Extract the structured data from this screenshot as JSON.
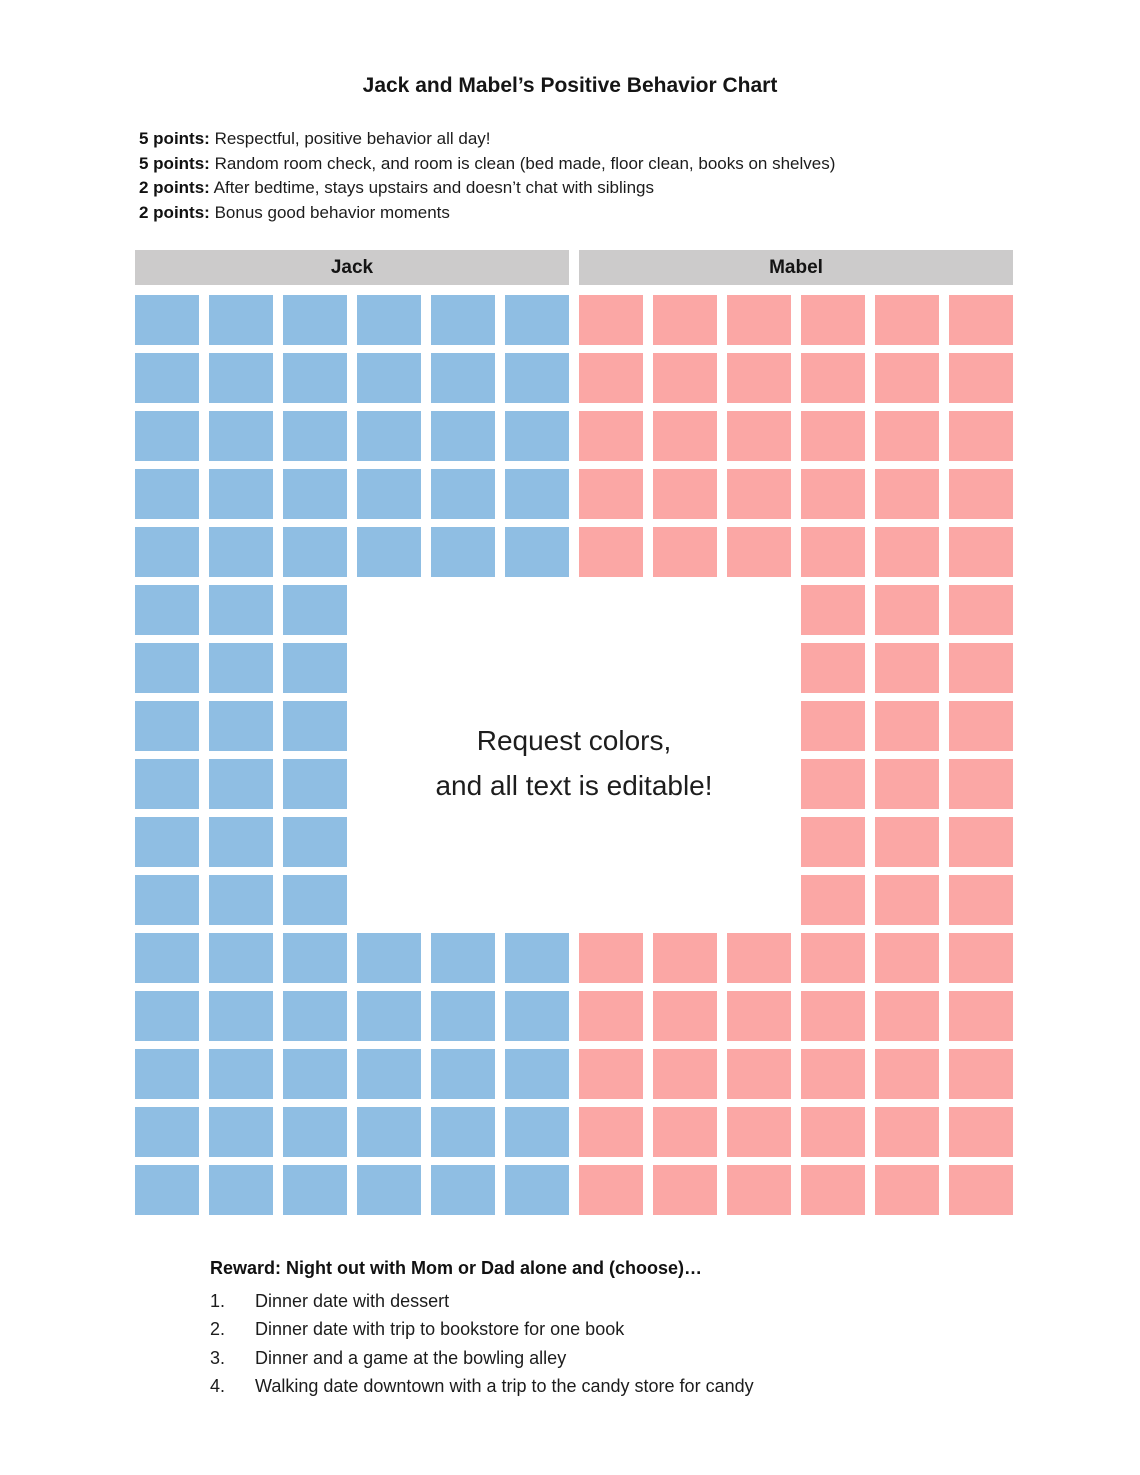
{
  "title": "Jack and Mabel’s Positive Behavior Chart",
  "points_rules": [
    {
      "points": "5 points:",
      "description": "Respectful, positive behavior all day!"
    },
    {
      "points": "5 points:",
      "description": "Random room check, and room is clean (bed made, floor clean, books on shelves)"
    },
    {
      "points": "2 points:",
      "description": "After bedtime, stays upstairs and doesn’t chat with siblings"
    },
    {
      "points": "2 points:",
      "description": "Bonus good behavior moments"
    }
  ],
  "chart": {
    "headers": [
      "Jack",
      "Mabel"
    ],
    "columns": 12,
    "legend": {
      "J": "jack-point-square",
      "M": "mabel-point-square",
      ".": "empty-cell"
    },
    "rows": [
      "JJJJJJMMMMMM",
      "JJJJJJMMMMMM",
      "JJJJJJMMMMMM",
      "JJJJJJMMMMMM",
      "JJJJJJMMMMMM",
      "JJJ......MMM",
      "JJJ......MMM",
      "JJJ......MMM",
      "JJJ......MMM",
      "JJJ......MMM",
      "JJJ......MMM",
      "JJJJJJMMMMMM",
      "JJJJJJMMMMMM",
      "JJJJJJMMMMMM",
      "JJJJJJMMMMMM",
      "JJJJJJMMMMMM"
    ],
    "center_note_lines": [
      "Request colors,",
      "and all text is editable!"
    ],
    "colors": {
      "jack_square": "#8fbee3",
      "mabel_square": "#fba7a5",
      "header_bg": "#cccbcb"
    }
  },
  "reward": {
    "heading": "Reward: Night out with Mom or Dad alone and (choose)…",
    "options": [
      {
        "number": "1.",
        "text": "Dinner date with dessert"
      },
      {
        "number": "2.",
        "text": "Dinner date with trip to bookstore for one book"
      },
      {
        "number": "3.",
        "text": "Dinner and a game at the bowling alley"
      },
      {
        "number": "4.",
        "text": "Walking date downtown with a trip to the candy store for candy"
      }
    ]
  }
}
